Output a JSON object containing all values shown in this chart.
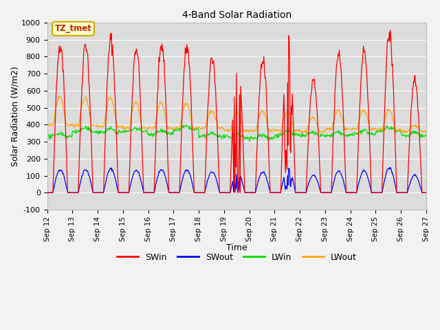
{
  "title": "4-Band Solar Radiation",
  "xlabel": "Time",
  "ylabel": "Solar Radiation (W/m2)",
  "annotation": "TZ_tmet",
  "legend_labels": [
    "SWin",
    "SWout",
    "LWin",
    "LWout"
  ],
  "line_colors": {
    "SWin": "#ff0000",
    "SWout": "#0000ff",
    "LWin": "#00dd00",
    "LWout": "#ffa500"
  },
  "ylim": [
    -100,
    1000
  ],
  "fig_bg": "#f2f2f2",
  "plot_bg": "#dcdcdc",
  "start_day": 12,
  "end_day": 27,
  "days": 15,
  "sw_peaks": [
    880,
    880,
    900,
    855,
    880,
    855,
    800,
    750,
    780,
    930,
    660,
    820,
    830,
    930,
    650
  ],
  "lwin_daily": [
    330,
    360,
    355,
    360,
    345,
    370,
    330,
    325,
    320,
    340,
    335,
    335,
    345,
    365,
    335
  ],
  "lwout_peaks": [
    565,
    560,
    560,
    535,
    530,
    525,
    480,
    475,
    480,
    470,
    445,
    485,
    485,
    485,
    395
  ],
  "lwout_nights": [
    400,
    395,
    390,
    380,
    380,
    380,
    380,
    365,
    365,
    365,
    360,
    375,
    375,
    370,
    360
  ]
}
